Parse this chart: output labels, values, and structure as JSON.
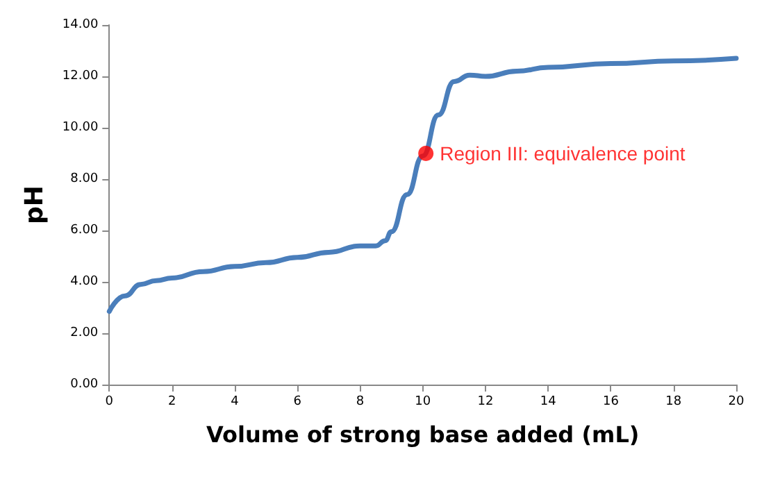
{
  "chart_data": {
    "type": "line",
    "xlabel": "Volume of strong base added (mL)",
    "ylabel": "pH",
    "xlim": [
      0,
      20
    ],
    "xticks": [
      0,
      2,
      4,
      6,
      8,
      10,
      12,
      14,
      16,
      18,
      20
    ],
    "ylim": [
      0,
      14
    ],
    "yticks": [
      {
        "value": 0,
        "label": "0.00"
      },
      {
        "value": 2,
        "label": "2.00"
      },
      {
        "value": 4,
        "label": "4.00"
      },
      {
        "value": 6,
        "label": "6.00"
      },
      {
        "value": 8,
        "label": "8.00"
      },
      {
        "value": 10,
        "label": "10.00"
      },
      {
        "value": 12,
        "label": "12.00"
      },
      {
        "value": 14,
        "label": "14.00"
      }
    ],
    "grid": false,
    "marker": "none",
    "line_style": "solid",
    "series": [
      {
        "color": "#4a7ebb",
        "x": [
          0,
          0.5,
          1,
          1.5,
          2,
          3,
          4,
          5,
          6,
          7,
          8,
          8.5,
          8.8,
          9,
          9.5,
          10,
          10.5,
          11,
          11.5,
          12,
          13,
          14,
          16,
          18,
          20
        ],
        "values": [
          2.85,
          3.45,
          3.9,
          4.05,
          4.15,
          4.4,
          4.6,
          4.75,
          4.95,
          5.15,
          5.4,
          5.4,
          5.6,
          5.95,
          7.4,
          8.9,
          10.5,
          11.8,
          12.05,
          12.0,
          12.2,
          12.35,
          12.5,
          12.6,
          12.7
        ]
      },
      {
        "type": "scatter",
        "color": "#ff0000",
        "marker": "circle",
        "x": [
          10.1
        ],
        "values": [
          9.0
        ]
      }
    ],
    "annotations": [
      {
        "text": "Region III: equivalence point",
        "x": 10.1,
        "y": 9.0
      }
    ]
  }
}
